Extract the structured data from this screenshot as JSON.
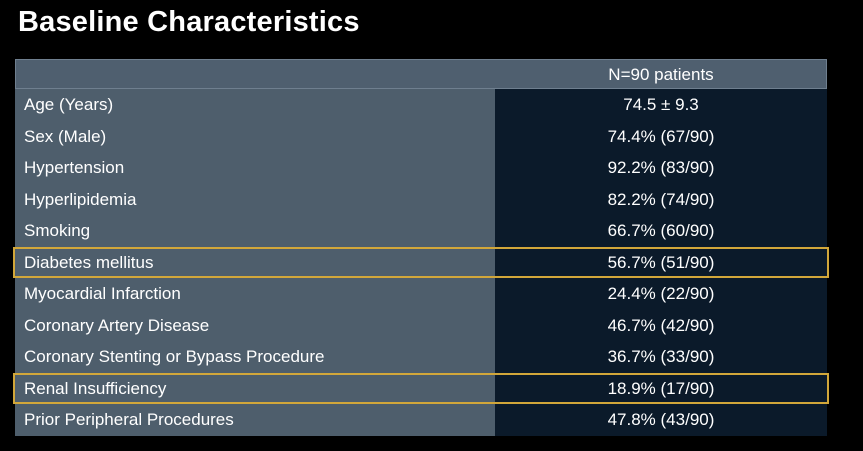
{
  "title": "Baseline Characteristics",
  "table": {
    "column_header": "N=90 patients",
    "rows": [
      {
        "label": "Age (Years)",
        "value": "74.5 ± 9.3",
        "highlighted": false
      },
      {
        "label": "Sex (Male)",
        "value": "74.4% (67/90)",
        "highlighted": false
      },
      {
        "label": "Hypertension",
        "value": "92.2% (83/90)",
        "highlighted": false
      },
      {
        "label": "Hyperlipidemia",
        "value": "82.2% (74/90)",
        "highlighted": false
      },
      {
        "label": "Smoking",
        "value": "66.7% (60/90)",
        "highlighted": false
      },
      {
        "label": "Diabetes mellitus",
        "value": "56.7% (51/90)",
        "highlighted": true
      },
      {
        "label": "Myocardial Infarction",
        "value": "24.4% (22/90)",
        "highlighted": false
      },
      {
        "label": "Coronary Artery Disease",
        "value": "46.7% (42/90)",
        "highlighted": false
      },
      {
        "label": "Coronary Stenting or Bypass Procedure",
        "value": "36.7% (33/90)",
        "highlighted": false
      },
      {
        "label": "Renal Insufficiency",
        "value": "18.9% (17/90)",
        "highlighted": true
      },
      {
        "label": "Prior Peripheral Procedures",
        "value": "47.8% (43/90)",
        "highlighted": false
      }
    ]
  },
  "colors": {
    "background": "#000000",
    "label_cell": "#4e5e6c",
    "value_cell": "#0b1a2a",
    "highlight_border": "#d2a73a",
    "text": "#ffffff"
  }
}
